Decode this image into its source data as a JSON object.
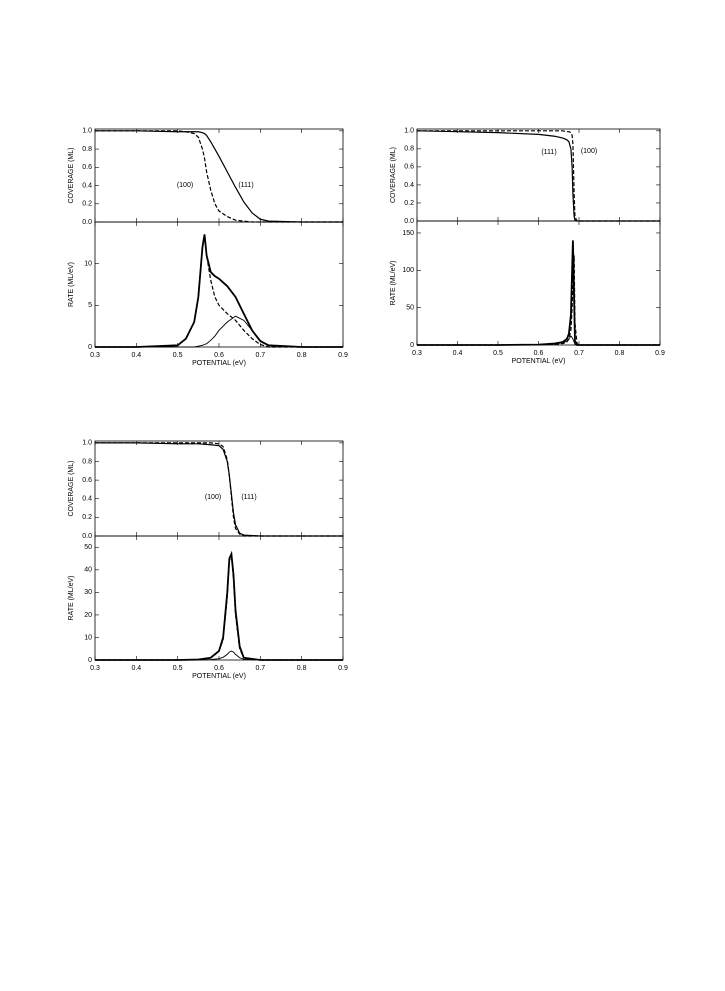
{
  "chart_data": [
    {
      "type": "line",
      "ylabel": "COVERAGE (ML)",
      "xlim": [
        0.3,
        0.9
      ],
      "xticks": [
        0.3,
        0.4,
        0.5,
        0.6,
        0.7,
        0.8,
        0.9
      ],
      "ylim": [
        0,
        1.02
      ],
      "yticks": [
        {
          "value": 0,
          "label": "0.0"
        },
        0.2,
        0.4,
        0.6,
        0.8,
        {
          "value": 1,
          "label": "1.0"
        }
      ],
      "x": [
        0.3,
        0.4,
        0.5,
        0.52,
        0.54,
        0.55,
        0.56,
        0.565,
        0.57,
        0.58,
        0.59,
        0.6,
        0.62,
        0.64,
        0.66,
        0.68,
        0.7,
        0.72,
        0.8,
        0.9
      ],
      "series": [
        {
          "name": "(100)",
          "color": "#000",
          "dash": true,
          "width": 1.2,
          "values": [
            1,
            1,
            1,
            0.99,
            0.97,
            0.93,
            0.8,
            0.7,
            0.55,
            0.35,
            0.2,
            0.12,
            0.06,
            0.02,
            0.01,
            0,
            0,
            0,
            0,
            0
          ]
        },
        {
          "name": "(111)",
          "color": "#000",
          "dash": false,
          "width": 1.2,
          "values": [
            1,
            1,
            0.99,
            0.99,
            0.99,
            0.99,
            0.98,
            0.97,
            0.95,
            0.88,
            0.8,
            0.72,
            0.55,
            0.38,
            0.22,
            0.1,
            0.03,
            0.01,
            0,
            0
          ]
        }
      ]
    },
    {
      "type": "line",
      "ylabel": "RATE (ML/eV)",
      "xlabel": "POTENTIAL (eV)",
      "xlim": [
        0.3,
        0.9
      ],
      "xticks": [
        0.3,
        0.4,
        0.5,
        0.6,
        0.7,
        0.8,
        0.9
      ],
      "ylim": [
        0,
        15
      ],
      "yticks": [
        0,
        5,
        10
      ],
      "x": [
        0.3,
        0.4,
        0.5,
        0.52,
        0.54,
        0.55,
        0.56,
        0.565,
        0.57,
        0.58,
        0.59,
        0.6,
        0.62,
        0.64,
        0.66,
        0.68,
        0.7,
        0.72,
        0.8,
        0.9
      ],
      "series": [
        {
          "color": "#000",
          "dash": false,
          "width": 1.8,
          "values": [
            0,
            0,
            0.2,
            1,
            3,
            6,
            12,
            13.5,
            11,
            9,
            8.5,
            8.2,
            7.3,
            6,
            4,
            2,
            0.7,
            0.2,
            0,
            0
          ]
        },
        {
          "color": "#000",
          "dash": true,
          "width": 1.2,
          "values": [
            0,
            0,
            0.2,
            1,
            3,
            6,
            12,
            13.5,
            11,
            8,
            6,
            5,
            4,
            3.2,
            2,
            1,
            0.3,
            0,
            0,
            0
          ]
        },
        {
          "color": "#000",
          "dash": false,
          "width": 0.9,
          "values": [
            0,
            0,
            0,
            0,
            0,
            0.1,
            0.2,
            0.3,
            0.4,
            0.8,
            1.3,
            2,
            3,
            3.7,
            3.2,
            2,
            0.8,
            0.2,
            0,
            0
          ]
        }
      ]
    },
    {
      "type": "line",
      "ylabel": "COVERAGE (ML)",
      "xlim": [
        0.3,
        0.9
      ],
      "xticks": [
        0.3,
        0.4,
        0.5,
        0.6,
        0.7,
        0.8,
        0.9
      ],
      "ylim": [
        0,
        1.02
      ],
      "yticks": [
        {
          "value": 0,
          "label": "0.0"
        },
        0.2,
        0.4,
        0.6,
        0.8,
        {
          "value": 1,
          "label": "1.0"
        }
      ],
      "x": [
        0.3,
        0.4,
        0.5,
        0.6,
        0.64,
        0.66,
        0.67,
        0.675,
        0.68,
        0.683,
        0.685,
        0.688,
        0.69,
        0.695,
        0.7,
        0.8,
        0.9
      ],
      "series": [
        {
          "name": "(100)",
          "color": "#000",
          "dash": true,
          "width": 1.2,
          "values": [
            1,
            1,
            1,
            1,
            1,
            1,
            0.99,
            0.99,
            0.98,
            0.95,
            0.85,
            0.3,
            0.05,
            0,
            0,
            0,
            0
          ]
        },
        {
          "name": "(111)",
          "color": "#000",
          "dash": false,
          "width": 1.2,
          "values": [
            1,
            0.99,
            0.98,
            0.96,
            0.94,
            0.92,
            0.9,
            0.88,
            0.8,
            0.6,
            0.3,
            0.05,
            0.01,
            0,
            0,
            0,
            0
          ]
        }
      ]
    },
    {
      "type": "line",
      "ylabel": "RATE (ML/eV)",
      "xlabel": "POTENTIAL (eV)",
      "xlim": [
        0.3,
        0.9
      ],
      "xticks": [
        0.3,
        0.4,
        0.5,
        0.6,
        0.7,
        0.8,
        0.9
      ],
      "ylim": [
        0,
        166
      ],
      "yticks": [
        0,
        50,
        100,
        150
      ],
      "x": [
        0.3,
        0.4,
        0.5,
        0.6,
        0.64,
        0.66,
        0.67,
        0.675,
        0.68,
        0.683,
        0.685,
        0.688,
        0.69,
        0.695,
        0.7,
        0.8,
        0.9
      ],
      "series": [
        {
          "color": "#000",
          "dash": false,
          "width": 1.8,
          "values": [
            0,
            0,
            0,
            0.5,
            2,
            4,
            8,
            15,
            40,
            100,
            140,
            60,
            5,
            0,
            0,
            0,
            0
          ]
        },
        {
          "color": "#000",
          "dash": true,
          "width": 1.2,
          "values": [
            0,
            0,
            0,
            0.3,
            1,
            2,
            4,
            8,
            20,
            50,
            80,
            120,
            30,
            2,
            0,
            0,
            0
          ]
        },
        {
          "color": "#000",
          "dash": false,
          "width": 0.9,
          "values": [
            0,
            0,
            0,
            0.5,
            1.5,
            3,
            5,
            8,
            12,
            10,
            8,
            4,
            1,
            0,
            0,
            0,
            0
          ]
        }
      ]
    },
    {
      "type": "line",
      "ylabel": "COVERAGE (ML)",
      "xlim": [
        0.3,
        0.9
      ],
      "xticks": [
        0.3,
        0.4,
        0.5,
        0.6,
        0.7,
        0.8,
        0.9
      ],
      "ylim": [
        0,
        1.02
      ],
      "yticks": [
        {
          "value": 0,
          "label": "0.0"
        },
        0.2,
        0.4,
        0.6,
        0.8,
        {
          "value": 1,
          "label": "1.0"
        }
      ],
      "x": [
        0.3,
        0.4,
        0.5,
        0.55,
        0.58,
        0.6,
        0.61,
        0.62,
        0.625,
        0.63,
        0.635,
        0.64,
        0.65,
        0.66,
        0.7,
        0.8,
        0.9
      ],
      "series": [
        {
          "name": "(100)",
          "color": "#000",
          "dash": true,
          "width": 1.2,
          "values": [
            1,
            1,
            1,
            1,
            1,
            0.99,
            0.96,
            0.82,
            0.65,
            0.42,
            0.2,
            0.08,
            0.02,
            0,
            0,
            0,
            0
          ]
        },
        {
          "name": "(111)",
          "color": "#000",
          "dash": false,
          "width": 1.2,
          "values": [
            1,
            1,
            0.99,
            0.99,
            0.98,
            0.97,
            0.93,
            0.8,
            0.65,
            0.45,
            0.25,
            0.12,
            0.03,
            0.01,
            0,
            0,
            0
          ]
        }
      ]
    },
    {
      "type": "line",
      "ylabel": "RATE (ML/eV)",
      "xlabel": "POTENTIAL (eV)",
      "xlim": [
        0.3,
        0.9
      ],
      "xticks": [
        0.3,
        0.4,
        0.5,
        0.6,
        0.7,
        0.8,
        0.9
      ],
      "ylim": [
        0,
        55
      ],
      "yticks": [
        0,
        10,
        20,
        30,
        40,
        50
      ],
      "x": [
        0.3,
        0.4,
        0.5,
        0.55,
        0.58,
        0.6,
        0.61,
        0.62,
        0.625,
        0.63,
        0.635,
        0.64,
        0.65,
        0.66,
        0.7,
        0.8,
        0.9
      ],
      "series": [
        {
          "color": "#000",
          "dash": false,
          "width": 1.8,
          "values": [
            0,
            0,
            0,
            0.2,
            1,
            4,
            10,
            30,
            45,
            47,
            38,
            22,
            6,
            1,
            0,
            0,
            0
          ]
        },
        {
          "color": "#000",
          "dash": true,
          "width": 1.2,
          "values": [
            0,
            0,
            0,
            0.2,
            1,
            4,
            9,
            28,
            44,
            46,
            36,
            20,
            5,
            1,
            0,
            0,
            0
          ]
        },
        {
          "color": "#000",
          "dash": false,
          "width": 0.9,
          "values": [
            0,
            0,
            0,
            0,
            0.2,
            0.6,
            1.2,
            2.5,
            3.5,
            4,
            3.5,
            2.5,
            1,
            0.3,
            0,
            0,
            0
          ]
        }
      ]
    }
  ]
}
